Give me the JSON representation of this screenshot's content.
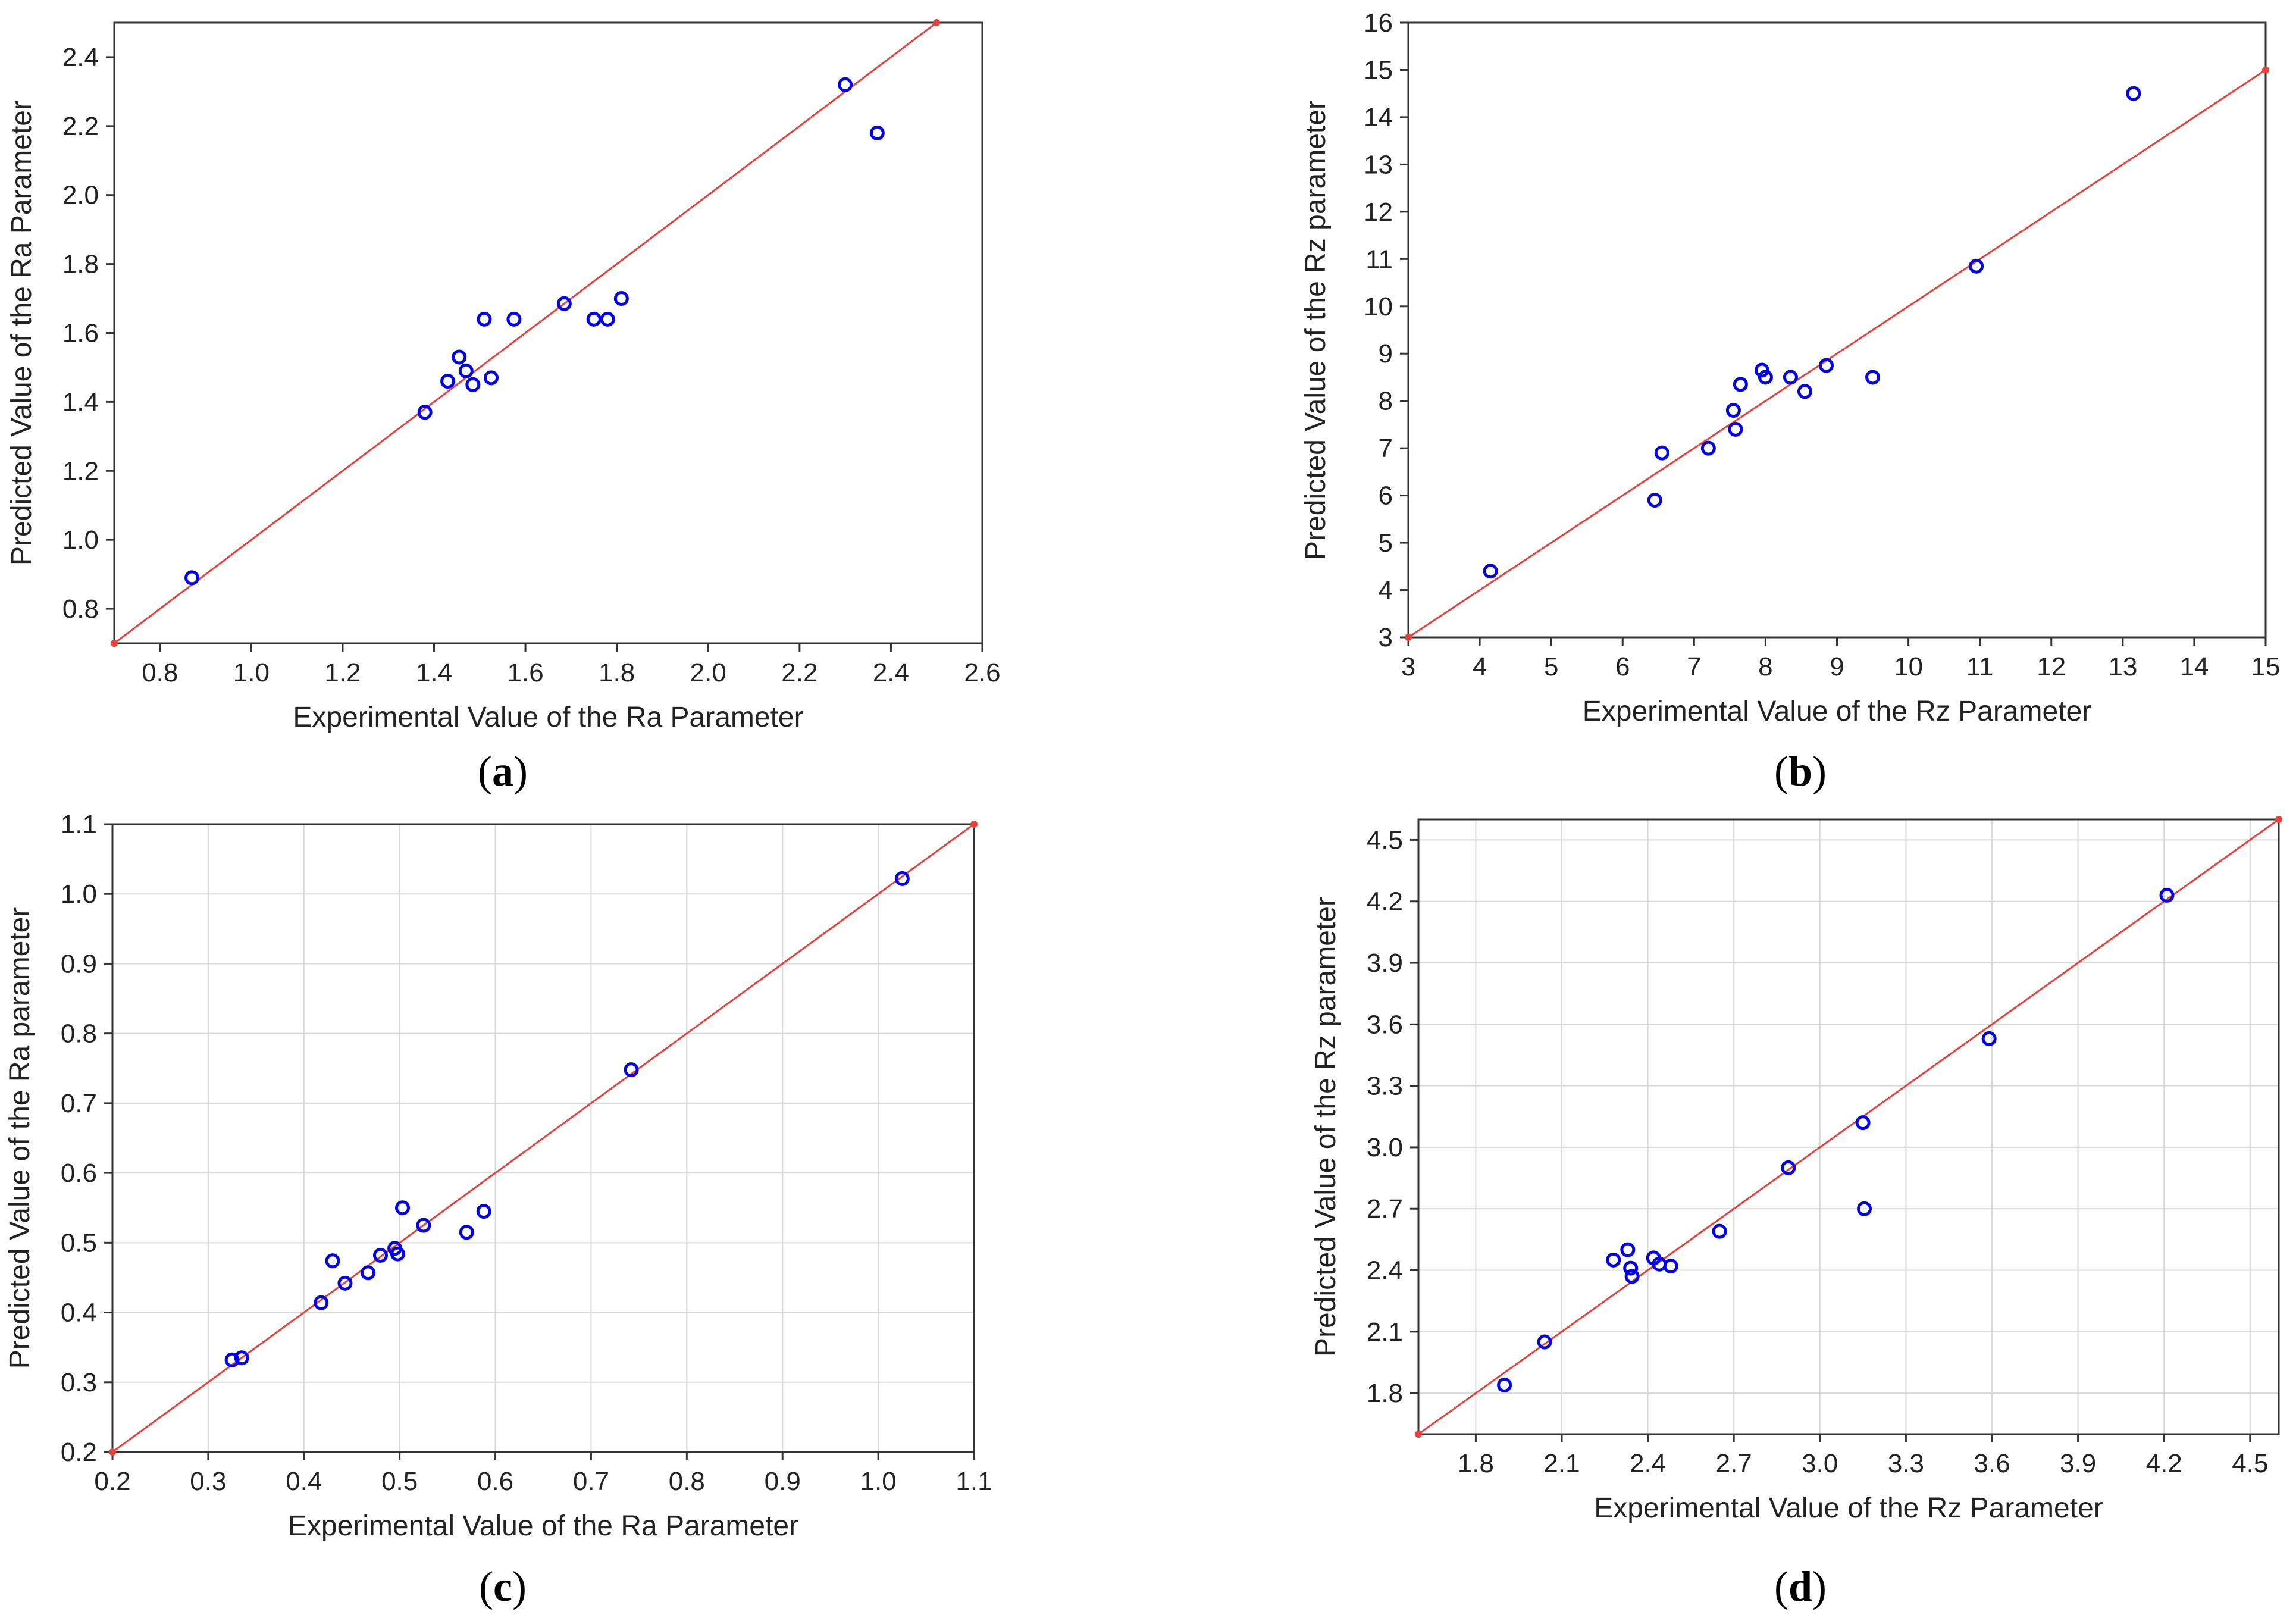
{
  "chart_data": [
    {
      "type": "scatter",
      "panel_label": "a",
      "xlabel": "Experimental Value of the Ra Parameter",
      "ylabel": "Predicted Value of the Ra Parameter",
      "xlim": [
        0.7,
        2.6
      ],
      "ylim": [
        0.7,
        2.5
      ],
      "xticks": [
        "0.8",
        "1.0",
        "1.2",
        "1.4",
        "1.6",
        "1.8",
        "2.0",
        "2.2",
        "2.4",
        "2.6"
      ],
      "yticks": [
        "0.8",
        "1.0",
        "1.2",
        "1.4",
        "1.6",
        "1.8",
        "2.0",
        "2.2",
        "2.4"
      ],
      "grid": false,
      "fit_line": [
        [
          0.7,
          0.7
        ],
        [
          2.5,
          2.5
        ]
      ],
      "points": [
        [
          0.87,
          0.89
        ],
        [
          1.38,
          1.37
        ],
        [
          1.43,
          1.46
        ],
        [
          1.455,
          1.53
        ],
        [
          1.47,
          1.49
        ],
        [
          1.485,
          1.45
        ],
        [
          1.51,
          1.64
        ],
        [
          1.525,
          1.47
        ],
        [
          1.575,
          1.64
        ],
        [
          1.685,
          1.685
        ],
        [
          1.75,
          1.64
        ],
        [
          1.78,
          1.64
        ],
        [
          1.81,
          1.7
        ],
        [
          2.3,
          2.32
        ],
        [
          2.37,
          2.18
        ]
      ],
      "point_color": "#0000ee",
      "line_color": "#e8403a"
    },
    {
      "type": "scatter",
      "panel_label": "b",
      "xlabel": "Experimental Value of the Rz Parameter",
      "ylabel": "Predicted Value of the Rz parameter",
      "xlim": [
        3,
        15
      ],
      "ylim": [
        3,
        16
      ],
      "xticks": [
        "3",
        "4",
        "5",
        "6",
        "7",
        "8",
        "9",
        "10",
        "11",
        "12",
        "13",
        "14",
        "15"
      ],
      "yticks": [
        "3",
        "4",
        "5",
        "6",
        "7",
        "8",
        "9",
        "10",
        "11",
        "12",
        "13",
        "14",
        "15",
        "16"
      ],
      "grid": false,
      "fit_line": [
        [
          3,
          3
        ],
        [
          15,
          15
        ]
      ],
      "points": [
        [
          4.15,
          4.4
        ],
        [
          6.45,
          5.9
        ],
        [
          6.55,
          6.9
        ],
        [
          7.2,
          7.0
        ],
        [
          7.55,
          7.8
        ],
        [
          7.58,
          7.4
        ],
        [
          7.65,
          8.35
        ],
        [
          7.95,
          8.65
        ],
        [
          8.0,
          8.5
        ],
        [
          8.35,
          8.5
        ],
        [
          8.55,
          8.2
        ],
        [
          8.85,
          8.75
        ],
        [
          9.5,
          8.5
        ],
        [
          10.95,
          10.85
        ],
        [
          13.15,
          14.5
        ]
      ],
      "point_color": "#0000ee",
      "line_color": "#e8403a"
    },
    {
      "type": "scatter",
      "panel_label": "c",
      "xlabel": "Experimental Value of the Ra Parameter",
      "ylabel": "Predicted Value of the Ra parameter",
      "xlim": [
        0.2,
        1.1
      ],
      "ylim": [
        0.2,
        1.1
      ],
      "xticks": [
        "0.2",
        "0.3",
        "0.4",
        "0.5",
        "0.6",
        "0.7",
        "0.8",
        "0.9",
        "1.0",
        "1.1"
      ],
      "yticks": [
        "0.2",
        "0.3",
        "0.4",
        "0.5",
        "0.6",
        "0.7",
        "0.8",
        "0.9",
        "1.0",
        "1.1"
      ],
      "grid": true,
      "fit_line": [
        [
          0.2,
          0.2
        ],
        [
          1.1,
          1.1
        ]
      ],
      "points": [
        [
          0.325,
          0.332
        ],
        [
          0.335,
          0.335
        ],
        [
          0.418,
          0.414
        ],
        [
          0.43,
          0.474
        ],
        [
          0.443,
          0.442
        ],
        [
          0.467,
          0.457
        ],
        [
          0.48,
          0.482
        ],
        [
          0.495,
          0.492
        ],
        [
          0.498,
          0.484
        ],
        [
          0.503,
          0.55
        ],
        [
          0.525,
          0.525
        ],
        [
          0.57,
          0.515
        ],
        [
          0.588,
          0.545
        ],
        [
          0.742,
          0.748
        ],
        [
          1.025,
          1.022
        ]
      ],
      "point_color": "#0000ee",
      "line_color": "#e8403a"
    },
    {
      "type": "scatter",
      "panel_label": "d",
      "xlabel": "Experimental Value of the Rz Parameter",
      "ylabel": "Predicted Value of the Rz parameter",
      "xlim": [
        1.6,
        4.6
      ],
      "ylim": [
        1.6,
        4.6
      ],
      "xticks": [
        "1.8",
        "2.1",
        "2.4",
        "2.7",
        "3.0",
        "3.3",
        "3.6",
        "3.9",
        "4.2",
        "4.5"
      ],
      "yticks": [
        "1.8",
        "2.1",
        "2.4",
        "2.7",
        "3.0",
        "3.3",
        "3.6",
        "3.9",
        "4.2",
        "4.5"
      ],
      "grid": true,
      "fit_line": [
        [
          1.6,
          1.6
        ],
        [
          4.6,
          4.6
        ]
      ],
      "points": [
        [
          1.9,
          1.84
        ],
        [
          2.04,
          2.05
        ],
        [
          2.28,
          2.45
        ],
        [
          2.33,
          2.5
        ],
        [
          2.34,
          2.41
        ],
        [
          2.345,
          2.37
        ],
        [
          2.42,
          2.46
        ],
        [
          2.44,
          2.43
        ],
        [
          2.48,
          2.42
        ],
        [
          2.65,
          2.59
        ],
        [
          2.89,
          2.9
        ],
        [
          3.15,
          3.12
        ],
        [
          3.155,
          2.7
        ],
        [
          3.59,
          3.53
        ],
        [
          4.21,
          4.23
        ]
      ],
      "point_color": "#0000ee",
      "line_color": "#e8403a"
    }
  ]
}
